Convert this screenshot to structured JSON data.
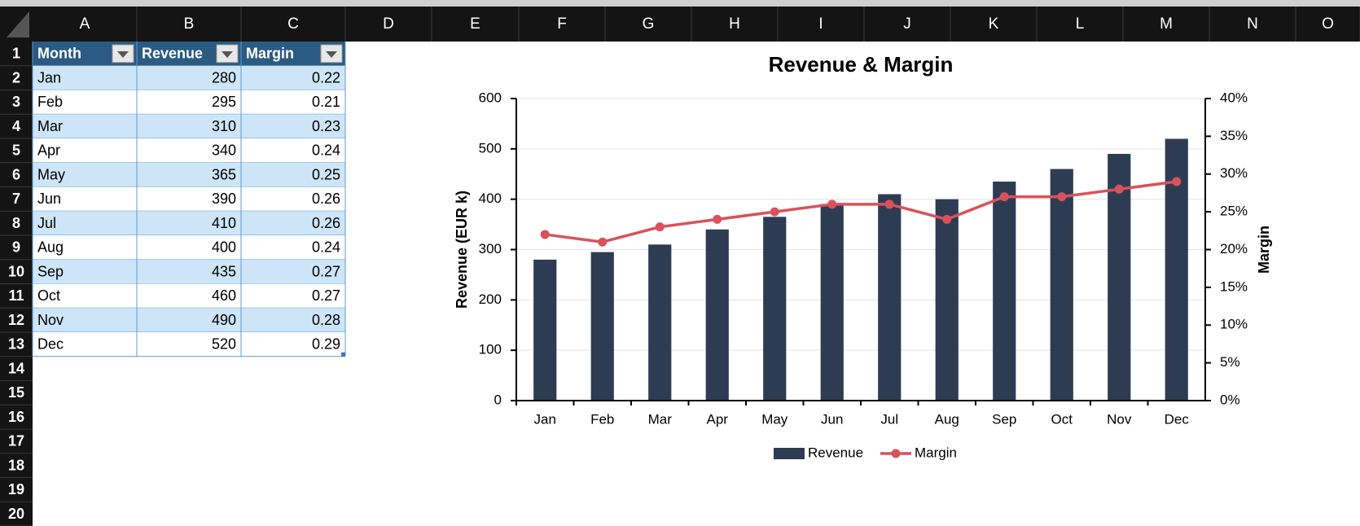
{
  "sheet": {
    "columns": [
      "A",
      "B",
      "C",
      "D",
      "E",
      "F",
      "G",
      "H",
      "I",
      "J",
      "K",
      "L",
      "M",
      "N",
      "O"
    ],
    "rows": [
      1,
      2,
      3,
      4,
      5,
      6,
      7,
      8,
      9,
      10,
      11,
      12,
      13,
      14,
      15,
      16,
      17,
      18,
      19,
      20
    ]
  },
  "table": {
    "headers": [
      "Month",
      "Revenue",
      "Margin"
    ],
    "rows": [
      [
        "Jan",
        280,
        0.22
      ],
      [
        "Feb",
        295,
        0.21
      ],
      [
        "Mar",
        310,
        0.23
      ],
      [
        "Apr",
        340,
        0.24
      ],
      [
        "May",
        365,
        0.25
      ],
      [
        "Jun",
        390,
        0.26
      ],
      [
        "Jul",
        410,
        0.26
      ],
      [
        "Aug",
        400,
        0.24
      ],
      [
        "Sep",
        435,
        0.27
      ],
      [
        "Oct",
        460,
        0.27
      ],
      [
        "Nov",
        490,
        0.28
      ],
      [
        "Dec",
        520,
        0.29
      ]
    ]
  },
  "chart_data": {
    "type": "combo",
    "title": "Revenue & Margin",
    "y_label": "Revenue (EUR k)",
    "y2_label": "Margin",
    "categories": [
      "Jan",
      "Feb",
      "Mar",
      "Apr",
      "May",
      "Jun",
      "Jul",
      "Aug",
      "Sep",
      "Oct",
      "Nov",
      "Dec"
    ],
    "series": [
      {
        "name": "Revenue",
        "type": "bar",
        "color": "#2e3c53",
        "values": [
          280,
          295,
          310,
          340,
          365,
          390,
          410,
          400,
          435,
          460,
          490,
          520
        ]
      },
      {
        "name": "Margin",
        "type": "line",
        "axis": "y2",
        "color": "#d9525a",
        "values": [
          22,
          21,
          23,
          24,
          25,
          26,
          26,
          24,
          27,
          27,
          28,
          29
        ]
      }
    ],
    "ylim": [
      0,
      600
    ],
    "yticks": [
      0,
      100,
      200,
      300,
      400,
      500,
      600
    ],
    "y2lim": [
      0,
      40
    ],
    "y2ticks": [
      {
        "value": 0,
        "label": "0%"
      },
      {
        "value": 5,
        "label": "5%"
      },
      {
        "value": 10,
        "label": "10%"
      },
      {
        "value": 15,
        "label": "15%"
      },
      {
        "value": 20,
        "label": "20%"
      },
      {
        "value": 25,
        "label": "25%"
      },
      {
        "value": 30,
        "label": "30%"
      },
      {
        "value": 35,
        "label": "35%"
      },
      {
        "value": 40,
        "label": "40%"
      }
    ],
    "grid": true,
    "legend": "bottom"
  }
}
